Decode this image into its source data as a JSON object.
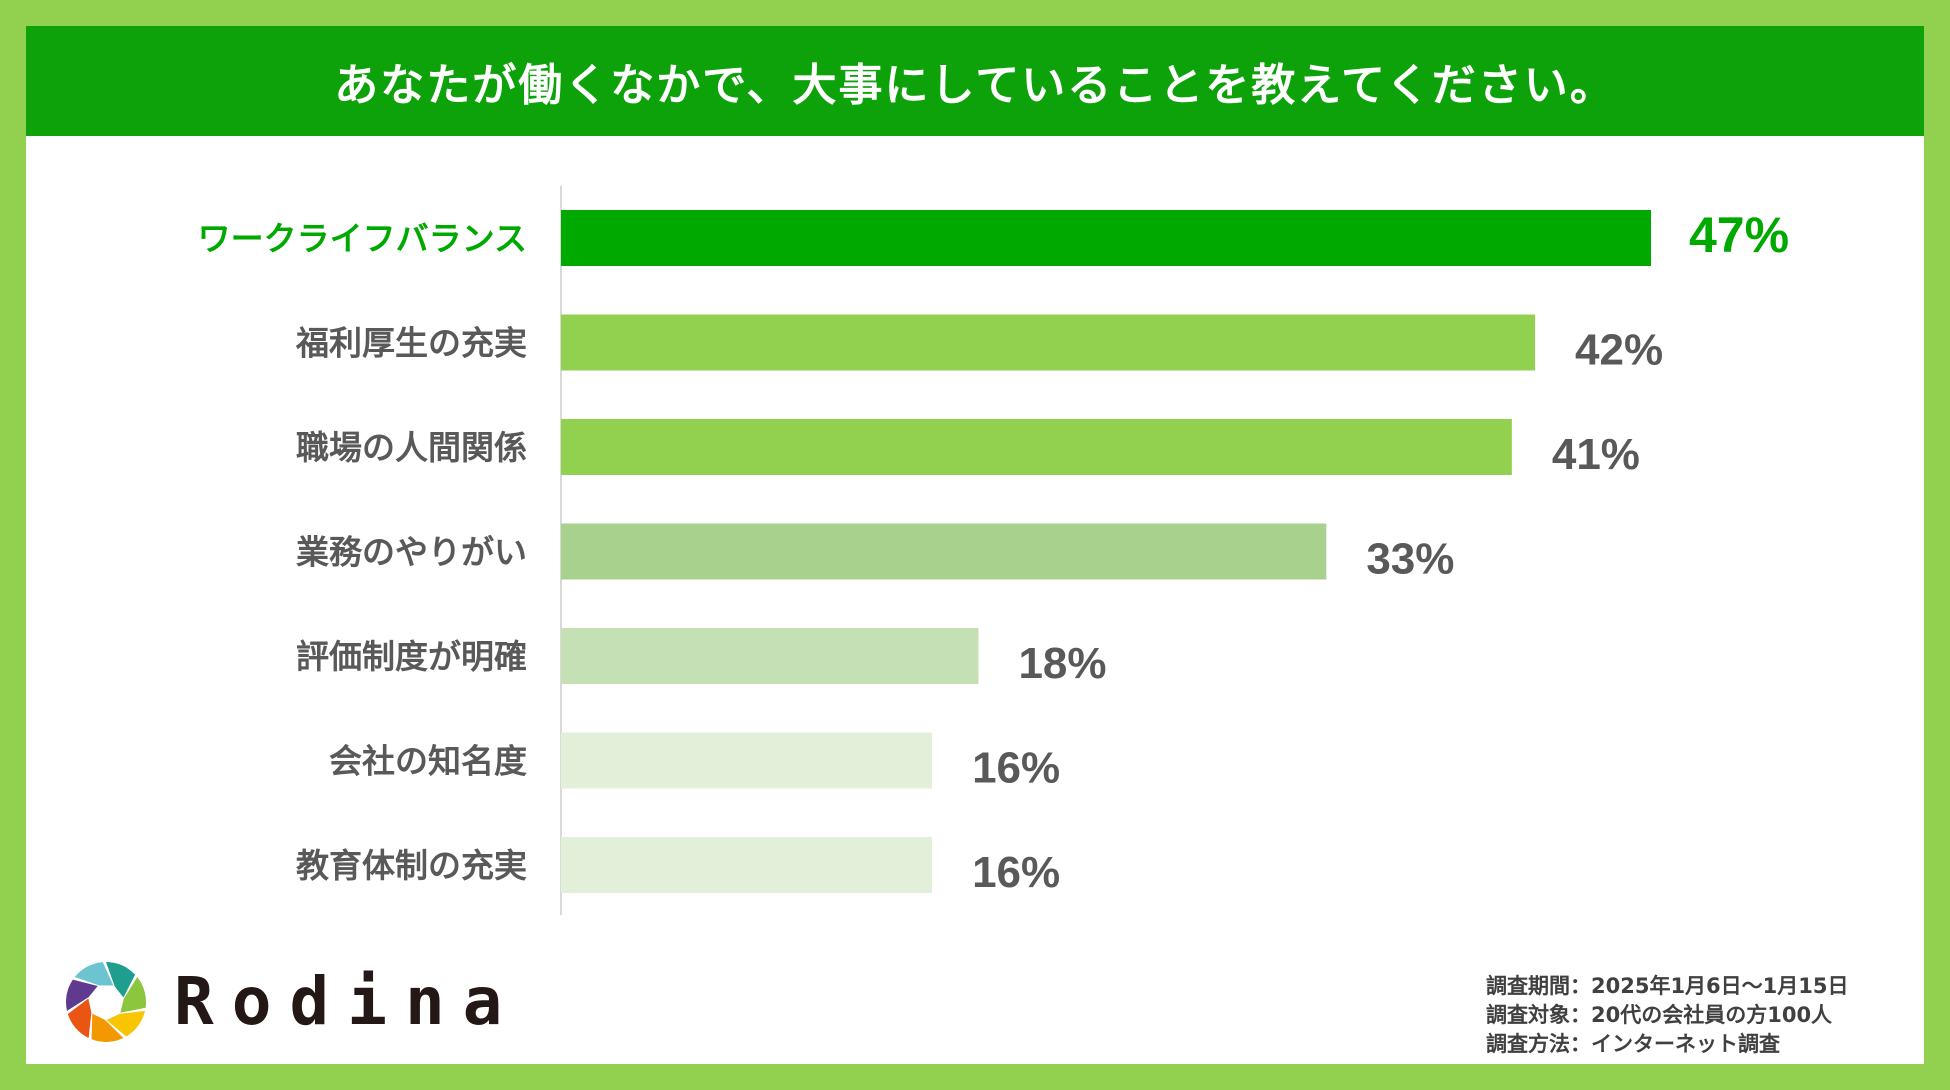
{
  "title": "あなたが働くなかで、大事にしていることを教えてください。",
  "chart_data": {
    "type": "bar",
    "orientation": "horizontal",
    "categories": [
      "ワークライフバランス",
      "福利厚生の充実",
      "職場の人間関係",
      "業務のやりがい",
      "評価制度が明確",
      "会社の知名度",
      "教育体制の充実"
    ],
    "values": [
      47,
      42,
      41,
      33,
      18,
      16,
      16
    ],
    "value_labels": [
      "47%",
      "42%",
      "41%",
      "33%",
      "18%",
      "16%",
      "16%"
    ],
    "unit": "%",
    "bar_colors": [
      "#00a900",
      "#92d050",
      "#92d050",
      "#a9d18e",
      "#c5e0b4",
      "#e2f0d9",
      "#e2f0d9"
    ],
    "highlight_color": "#00a900",
    "label_color": "#595959",
    "xlim": [
      0,
      50
    ],
    "grid": false,
    "legend": "none"
  },
  "brand": {
    "name": "Rodina",
    "logo_colors": [
      "#1f9e8e",
      "#8cc63f",
      "#f7c600",
      "#f39800",
      "#e95513",
      "#5f3a8e",
      "#6cc4d0"
    ]
  },
  "survey_notes": [
    "調査期間：2025年1月6日～1月15日",
    "調査対象：20代の会社員の方100人",
    "調査方法：インターネット調査"
  ]
}
